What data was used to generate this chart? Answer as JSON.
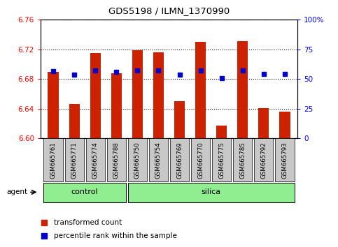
{
  "title": "GDS5198 / ILMN_1370990",
  "samples": [
    "GSM665761",
    "GSM665771",
    "GSM665774",
    "GSM665788",
    "GSM665750",
    "GSM665754",
    "GSM665769",
    "GSM665770",
    "GSM665775",
    "GSM665785",
    "GSM665792",
    "GSM665793"
  ],
  "red_values": [
    6.69,
    6.646,
    6.715,
    6.688,
    6.719,
    6.716,
    6.65,
    6.73,
    6.617,
    6.731,
    6.641,
    6.636
  ],
  "blue_values": [
    6.691,
    6.686,
    6.692,
    6.69,
    6.692,
    6.692,
    6.686,
    6.692,
    6.681,
    6.692,
    6.687,
    6.687
  ],
  "y_min": 6.6,
  "y_max": 6.76,
  "y_ticks": [
    6.6,
    6.64,
    6.68,
    6.72,
    6.76
  ],
  "right_y_ticks": [
    0,
    25,
    50,
    75,
    100
  ],
  "right_y_labels": [
    "0",
    "25",
    "50",
    "75",
    "100%"
  ],
  "bar_color": "#CC2200",
  "blue_color": "#0000CC",
  "legend_red_label": "transformed count",
  "legend_blue_label": "percentile rank within the sample",
  "agent_label": "agent",
  "bar_width": 0.5,
  "group_green": "#90EE90",
  "tick_bg": "#C8C8C8"
}
